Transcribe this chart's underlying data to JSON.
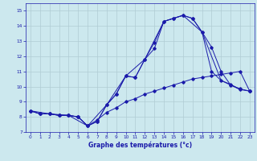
{
  "xlabel": "Graphe des températures (°c)",
  "bg_color": "#cce8ee",
  "grid_color": "#b0ccd4",
  "line_color": "#1a1aaa",
  "xlim": [
    -0.5,
    23.5
  ],
  "ylim": [
    7,
    15.5
  ],
  "yticks": [
    7,
    8,
    9,
    10,
    11,
    12,
    13,
    14,
    15
  ],
  "xticks": [
    0,
    1,
    2,
    3,
    4,
    5,
    6,
    7,
    8,
    9,
    10,
    11,
    12,
    13,
    14,
    15,
    16,
    17,
    18,
    19,
    20,
    21,
    22,
    23
  ],
  "series1_x": [
    0,
    1,
    2,
    3,
    4,
    5,
    6,
    7,
    8,
    9,
    10,
    11,
    12,
    13,
    14,
    15,
    16,
    17,
    18,
    19,
    20,
    21,
    22,
    23
  ],
  "series1_y": [
    8.4,
    8.2,
    8.2,
    8.1,
    8.1,
    8.0,
    7.4,
    7.7,
    8.8,
    9.5,
    10.7,
    10.6,
    11.8,
    12.9,
    14.3,
    14.5,
    14.7,
    14.5,
    13.6,
    11.0,
    10.4,
    10.15,
    9.8,
    9.7
  ],
  "series2_x": [
    0,
    1,
    2,
    3,
    4,
    5,
    6,
    7,
    8,
    9,
    10,
    11,
    12,
    13,
    14,
    15,
    16,
    17,
    18,
    19,
    20,
    21,
    22,
    23
  ],
  "series2_y": [
    8.4,
    8.2,
    8.2,
    8.1,
    8.1,
    8.0,
    7.4,
    7.7,
    8.8,
    9.5,
    10.7,
    10.6,
    11.8,
    12.5,
    14.3,
    14.5,
    14.7,
    14.5,
    13.6,
    12.6,
    11.0,
    10.1,
    9.85,
    9.7
  ],
  "series3_x": [
    0,
    1,
    2,
    3,
    4,
    5,
    6,
    7,
    8,
    9,
    10,
    11,
    12,
    13,
    14,
    15,
    16,
    17,
    18,
    19,
    20,
    21,
    22,
    23
  ],
  "series3_y": [
    8.4,
    8.2,
    8.2,
    8.1,
    8.1,
    8.0,
    7.4,
    7.8,
    8.3,
    8.6,
    9.0,
    9.2,
    9.5,
    9.7,
    9.9,
    10.1,
    10.3,
    10.5,
    10.6,
    10.7,
    10.8,
    10.9,
    11.0,
    9.7
  ],
  "series4_x": [
    0,
    2,
    4,
    6,
    8,
    10,
    12,
    14,
    16,
    18,
    20,
    22
  ],
  "series4_y": [
    8.4,
    8.2,
    8.1,
    7.4,
    8.8,
    10.7,
    11.8,
    14.3,
    14.7,
    13.6,
    10.4,
    9.8
  ]
}
